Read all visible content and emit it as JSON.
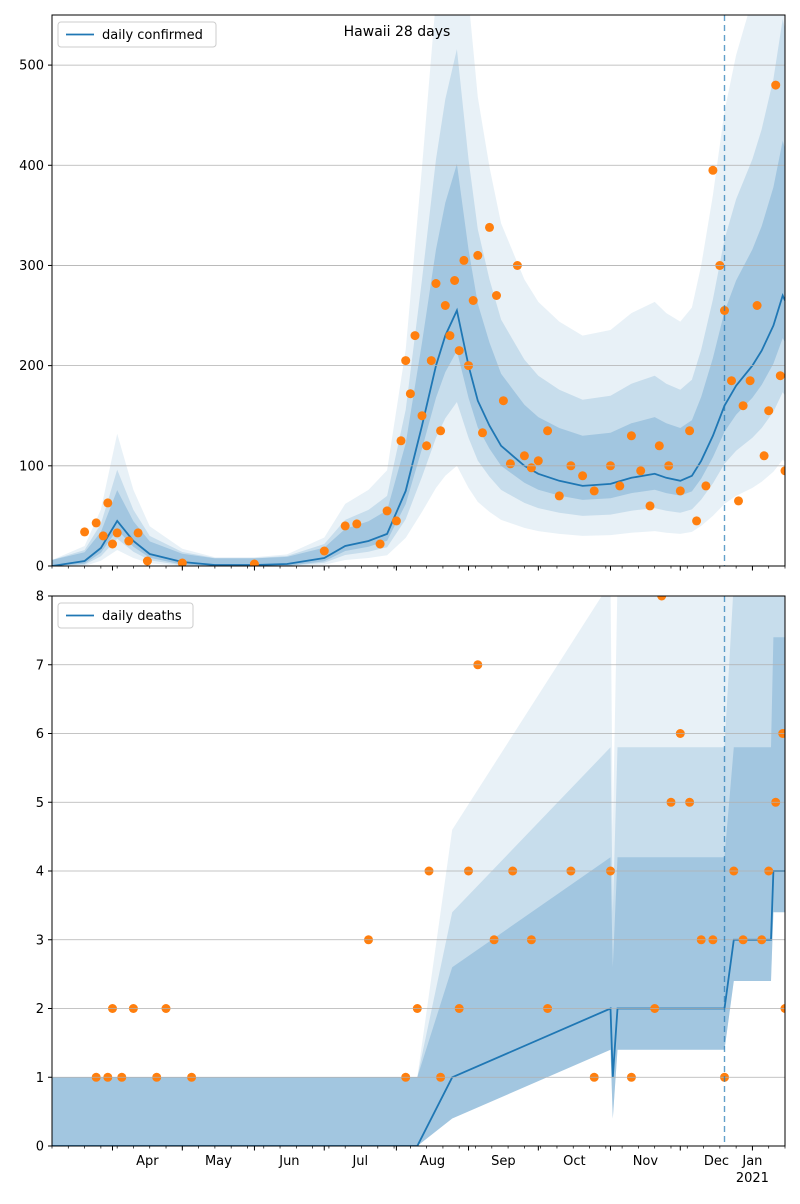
{
  "title": "Hawaii 28 days",
  "colors": {
    "line": "#1f77b4",
    "points": "#ff7f0e",
    "band": "#1f77b4",
    "grid": "#b0b0b0"
  },
  "x_ticks": [
    {
      "label": "Apr",
      "sub": ""
    },
    {
      "label": "May",
      "sub": ""
    },
    {
      "label": "Jun",
      "sub": ""
    },
    {
      "label": "Jul",
      "sub": ""
    },
    {
      "label": "Aug",
      "sub": ""
    },
    {
      "label": "Sep",
      "sub": ""
    },
    {
      "label": "Oct",
      "sub": ""
    },
    {
      "label": "Nov",
      "sub": ""
    },
    {
      "label": "Dec",
      "sub": ""
    },
    {
      "label": "Jan",
      "sub": "2021"
    }
  ],
  "chart_data": [
    {
      "type": "line",
      "title": "Hawaii 28 days",
      "legend": [
        "daily confirmed"
      ],
      "legend_position": "upper-left",
      "xlim": [
        "2020-03-06",
        "2021-01-15"
      ],
      "ylim": [
        0,
        550
      ],
      "yticks": [
        0,
        100,
        200,
        300,
        400,
        500
      ],
      "grid": "y",
      "forecast_start": "2020-12-20",
      "series": [
        {
          "name": "daily confirmed",
          "kind": "line",
          "x": [
            "2020-03-06",
            "2020-03-20",
            "2020-03-27",
            "2020-04-03",
            "2020-04-10",
            "2020-04-17",
            "2020-05-01",
            "2020-05-15",
            "2020-06-01",
            "2020-06-15",
            "2020-07-01",
            "2020-07-10",
            "2020-07-20",
            "2020-07-28",
            "2020-08-05",
            "2020-08-12",
            "2020-08-18",
            "2020-08-22",
            "2020-08-27",
            "2020-09-01",
            "2020-09-05",
            "2020-09-10",
            "2020-09-15",
            "2020-09-20",
            "2020-09-25",
            "2020-10-01",
            "2020-10-10",
            "2020-10-20",
            "2020-11-01",
            "2020-11-10",
            "2020-11-20",
            "2020-11-25",
            "2020-12-01",
            "2020-12-06",
            "2020-12-10",
            "2020-12-15",
            "2020-12-20",
            "2020-12-25",
            "2021-01-01",
            "2021-01-05",
            "2021-01-10",
            "2021-01-14",
            "2021-01-15"
          ],
          "y": [
            0,
            5,
            18,
            45,
            25,
            12,
            4,
            1,
            1,
            2,
            8,
            20,
            25,
            32,
            75,
            140,
            200,
            230,
            255,
            200,
            165,
            140,
            120,
            110,
            100,
            92,
            85,
            80,
            82,
            88,
            92,
            88,
            85,
            90,
            105,
            130,
            160,
            180,
            200,
            215,
            240,
            270,
            265
          ]
        },
        {
          "name": "",
          "kind": "scatter",
          "x": [
            "2020-03-20",
            "2020-03-25",
            "2020-03-28",
            "2020-03-30",
            "2020-04-01",
            "2020-04-03",
            "2020-04-08",
            "2020-04-12",
            "2020-04-16",
            "2020-05-01",
            "2020-06-01",
            "2020-07-01",
            "2020-07-10",
            "2020-07-15",
            "2020-07-25",
            "2020-07-28",
            "2020-08-01",
            "2020-08-03",
            "2020-08-05",
            "2020-08-07",
            "2020-08-09",
            "2020-08-12",
            "2020-08-14",
            "2020-08-16",
            "2020-08-18",
            "2020-08-20",
            "2020-08-22",
            "2020-08-24",
            "2020-08-26",
            "2020-08-28",
            "2020-08-30",
            "2020-09-01",
            "2020-09-03",
            "2020-09-05",
            "2020-09-07",
            "2020-09-10",
            "2020-09-13",
            "2020-09-16",
            "2020-09-19",
            "2020-09-22",
            "2020-09-25",
            "2020-09-28",
            "2020-10-01",
            "2020-10-05",
            "2020-10-10",
            "2020-10-15",
            "2020-10-20",
            "2020-10-25",
            "2020-11-01",
            "2020-11-05",
            "2020-11-10",
            "2020-11-14",
            "2020-11-18",
            "2020-11-22",
            "2020-11-26",
            "2020-12-01",
            "2020-12-05",
            "2020-12-08",
            "2020-12-12",
            "2020-12-15",
            "2020-12-18",
            "2020-12-20",
            "2020-12-23",
            "2020-12-26",
            "2020-12-28",
            "2020-12-31",
            "2021-01-03",
            "2021-01-06",
            "2021-01-08",
            "2021-01-11",
            "2021-01-13",
            "2021-01-15"
          ],
          "y": [
            34,
            43,
            30,
            63,
            22,
            33,
            25,
            33,
            5,
            3,
            2,
            15,
            40,
            42,
            22,
            55,
            45,
            125,
            205,
            172,
            230,
            150,
            120,
            205,
            282,
            135,
            260,
            230,
            285,
            215,
            305,
            200,
            265,
            310,
            133,
            338,
            270,
            165,
            102,
            300,
            110,
            98,
            105,
            135,
            70,
            100,
            90,
            75,
            100,
            80,
            130,
            95,
            60,
            120,
            100,
            75,
            135,
            45,
            80,
            395,
            300,
            255,
            185,
            65,
            160,
            185,
            260,
            110,
            155,
            480,
            190,
            95
          ]
        }
      ]
    },
    {
      "type": "line",
      "title": "",
      "legend": [
        "daily deaths"
      ],
      "legend_position": "upper-left",
      "xlim": [
        "2020-03-06",
        "2021-01-15"
      ],
      "ylim": [
        0,
        8
      ],
      "yticks": [
        0,
        1,
        2,
        3,
        4,
        5,
        6,
        7,
        8
      ],
      "grid": "y",
      "forecast_start": "2020-12-20",
      "series": [
        {
          "name": "daily deaths",
          "kind": "line",
          "x": [
            "2020-03-06",
            "2020-08-10",
            "2020-08-25",
            "2020-11-01",
            "2020-11-02",
            "2020-11-04",
            "2020-12-15",
            "2020-12-20",
            "2020-12-24",
            "2020-12-31",
            "2021-01-09",
            "2021-01-10",
            "2021-01-15"
          ],
          "y": [
            0,
            0,
            1,
            2,
            1,
            2,
            2,
            2,
            3,
            3,
            3,
            4,
            4
          ]
        },
        {
          "name": "",
          "kind": "scatter",
          "x": [
            "2020-03-25",
            "2020-03-30",
            "2020-04-01",
            "2020-04-05",
            "2020-04-10",
            "2020-04-20",
            "2020-04-24",
            "2020-05-05",
            "2020-07-20",
            "2020-08-05",
            "2020-08-10",
            "2020-08-15",
            "2020-08-20",
            "2020-08-28",
            "2020-09-01",
            "2020-09-05",
            "2020-09-12",
            "2020-09-20",
            "2020-09-28",
            "2020-10-05",
            "2020-10-15",
            "2020-10-25",
            "2020-11-01",
            "2020-11-10",
            "2020-11-20",
            "2020-11-23",
            "2020-11-27",
            "2020-12-01",
            "2020-12-05",
            "2020-12-10",
            "2020-12-15",
            "2020-12-20",
            "2020-12-24",
            "2020-12-28",
            "2021-01-05",
            "2021-01-08",
            "2021-01-11",
            "2021-01-14",
            "2021-01-15"
          ],
          "y": [
            1,
            1,
            2,
            1,
            2,
            1,
            2,
            1,
            3,
            1,
            2,
            4,
            1,
            2,
            4,
            7,
            3,
            4,
            3,
            2,
            4,
            1,
            4,
            1,
            2,
            8,
            5,
            6,
            5,
            3,
            3,
            1,
            4,
            3,
            3,
            4,
            5,
            6,
            2
          ]
        }
      ]
    }
  ]
}
